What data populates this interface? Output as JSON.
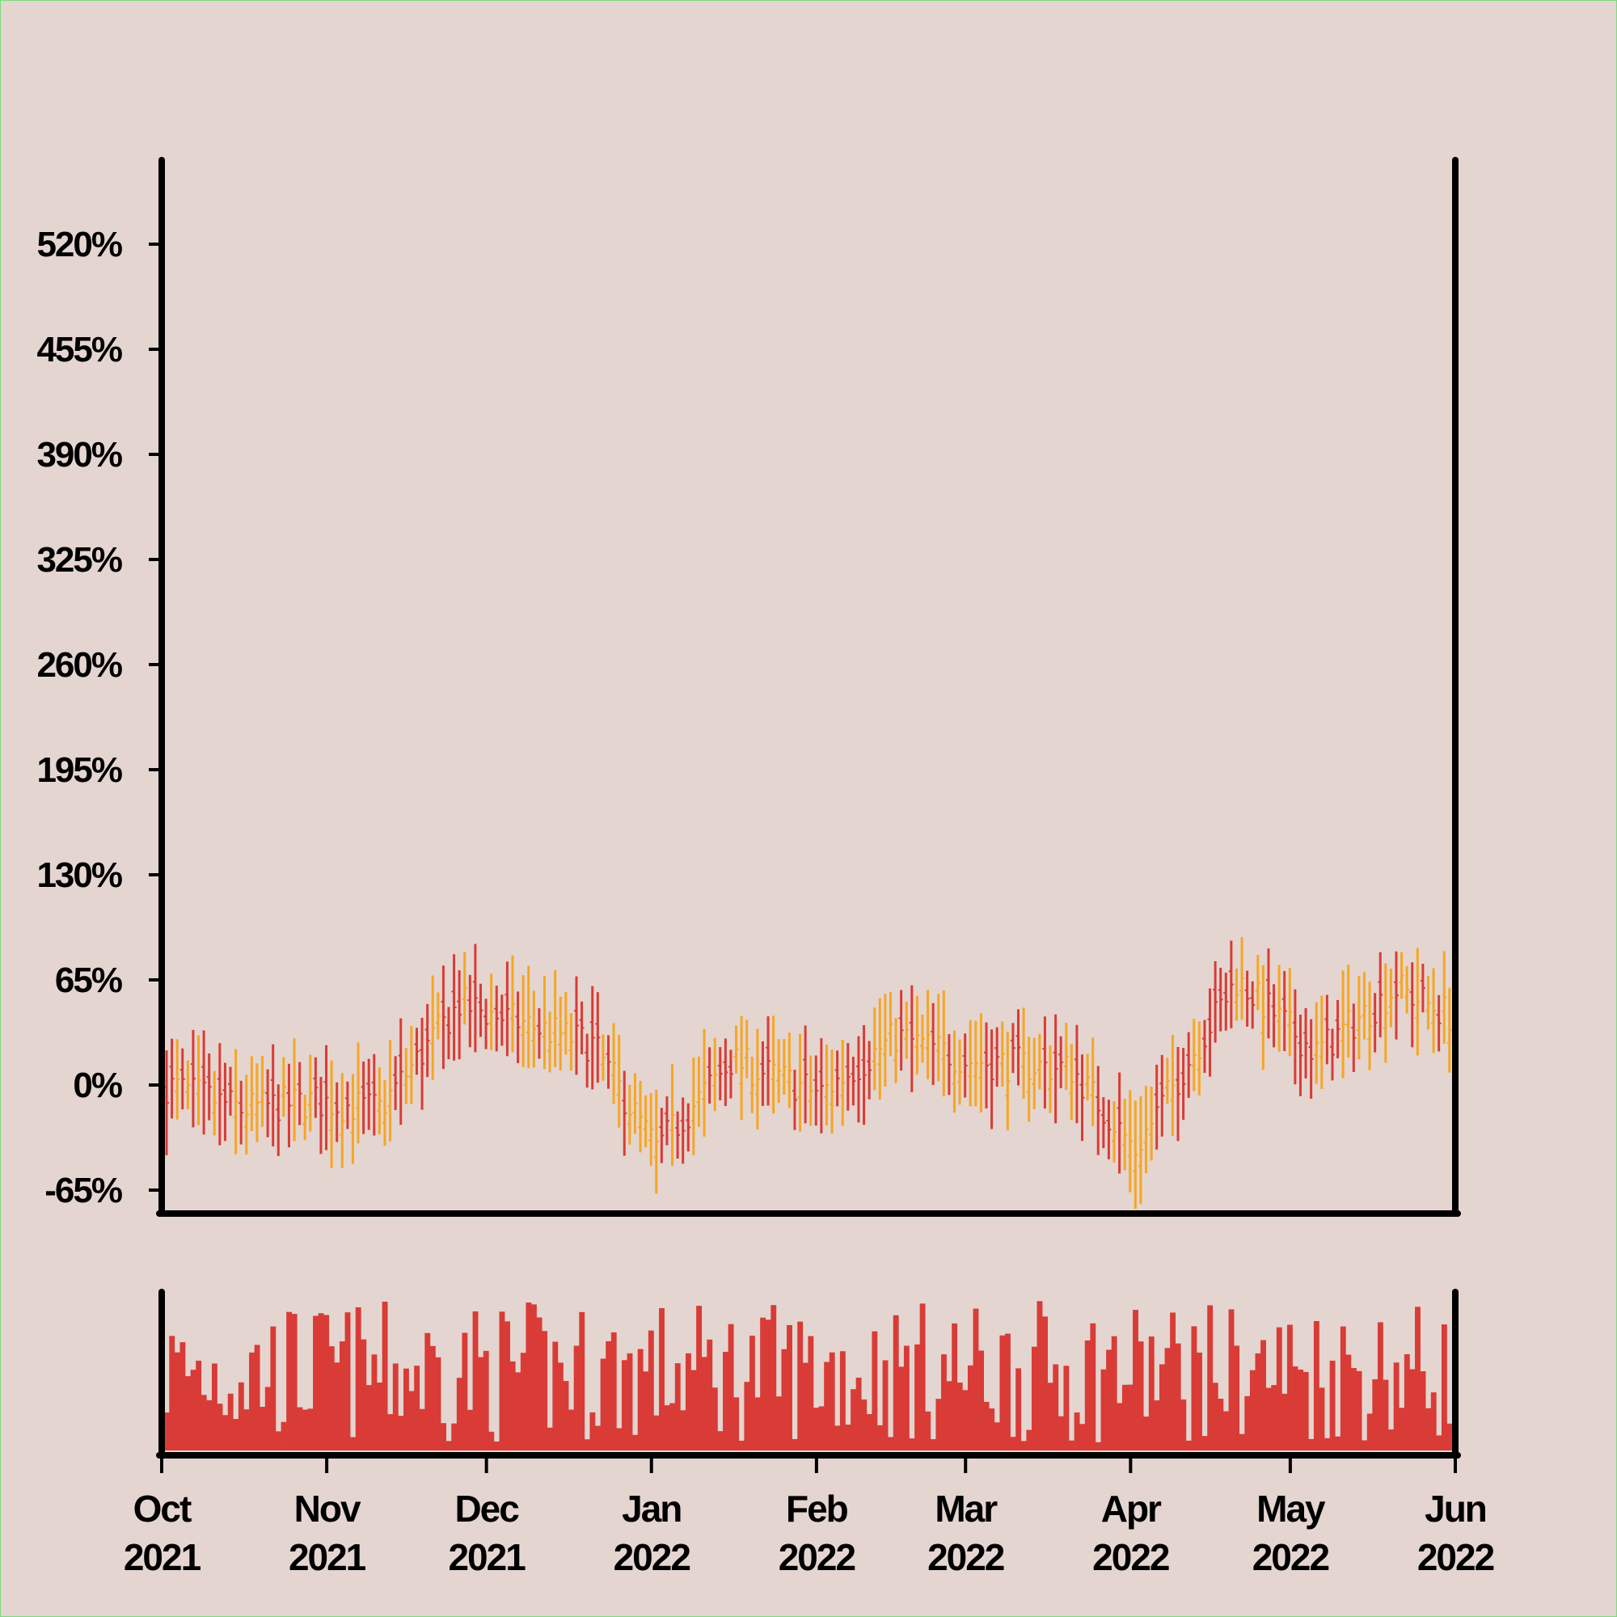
{
  "chart_data": {
    "type": "ohlc",
    "x_range": [
      "2021-10-01",
      "2022-06-01"
    ],
    "y_axis": {
      "range_percent": [
        -80,
        600
      ],
      "ticks": [
        "520%",
        "455%",
        "390%",
        "325%",
        "260%",
        "195%",
        "130%",
        "65%",
        "0%",
        "-65%"
      ],
      "tick_values": [
        520,
        455,
        390,
        325,
        260,
        195,
        130,
        65,
        0,
        -65
      ]
    },
    "x_ticks": [
      {
        "date": "2021-10-01",
        "month": "Oct",
        "year": "2021"
      },
      {
        "date": "2021-11-01",
        "month": "Nov",
        "year": "2021"
      },
      {
        "date": "2021-12-01",
        "month": "Dec",
        "year": "2021"
      },
      {
        "date": "2022-01-01",
        "month": "Jan",
        "year": "2022"
      },
      {
        "date": "2022-02-01",
        "month": "Feb",
        "year": "2022"
      },
      {
        "date": "2022-03-01",
        "month": "Mar",
        "year": "2022"
      },
      {
        "date": "2022-04-01",
        "month": "Apr",
        "year": "2022"
      },
      {
        "date": "2022-05-01",
        "month": "May",
        "year": "2022"
      },
      {
        "date": "2022-06-01",
        "month": "Jun",
        "year": "2022"
      }
    ],
    "trend_percent": [
      {
        "date": "2021-10-01",
        "value": 0
      },
      {
        "date": "2021-10-15",
        "value": -15
      },
      {
        "date": "2021-10-29",
        "value": -10
      },
      {
        "date": "2021-11-10",
        "value": -15
      },
      {
        "date": "2021-11-25",
        "value": 50
      },
      {
        "date": "2021-12-05",
        "value": 40
      },
      {
        "date": "2021-12-20",
        "value": 25
      },
      {
        "date": "2022-01-01",
        "value": -40
      },
      {
        "date": "2022-01-15",
        "value": 15
      },
      {
        "date": "2022-02-01",
        "value": -5
      },
      {
        "date": "2022-02-15",
        "value": 30
      },
      {
        "date": "2022-03-01",
        "value": 15
      },
      {
        "date": "2022-03-20",
        "value": 10
      },
      {
        "date": "2022-04-01",
        "value": -40
      },
      {
        "date": "2022-04-20",
        "value": 65
      },
      {
        "date": "2022-05-05",
        "value": 20
      },
      {
        "date": "2022-05-20",
        "value": 60
      },
      {
        "date": "2022-06-01",
        "value": 40
      }
    ],
    "colors": {
      "up": "#f5a623",
      "down": "#d93b36",
      "volume": "#d93b36",
      "background": "#e4d5d0",
      "axis": "#000000"
    },
    "volume_panel": {
      "type": "bar",
      "y_labels": "none"
    },
    "grid": false,
    "legend": "none"
  }
}
